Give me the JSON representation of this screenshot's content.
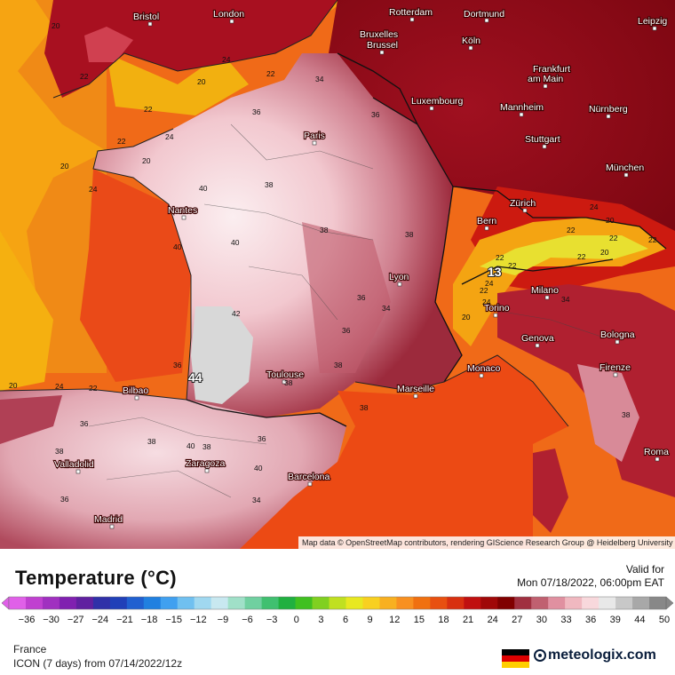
{
  "map": {
    "attribution": "Map data © OpenStreetMap contributors, rendering GIScience Research Group @ Heidelberg University",
    "cities": [
      {
        "name": "Bristol",
        "id": "bristol"
      },
      {
        "name": "London",
        "id": "london"
      },
      {
        "name": "Rotterdam",
        "id": "rotterdam"
      },
      {
        "name": "Dortmund",
        "id": "dortmund"
      },
      {
        "name": "Leipzig",
        "id": "leipzig"
      },
      {
        "name": "Bruxelles",
        "id": "bruxelles-1"
      },
      {
        "name": "Brussel",
        "id": "bruxelles-2"
      },
      {
        "name": "Köln",
        "id": "koln"
      },
      {
        "name": "Frankfurt",
        "id": "frankfurt-1"
      },
      {
        "name": "am Main",
        "id": "frankfurt-2"
      },
      {
        "name": "Luxembourg",
        "id": "luxembourg"
      },
      {
        "name": "Mannheim",
        "id": "mannheim"
      },
      {
        "name": "Nürnberg",
        "id": "nurnberg"
      },
      {
        "name": "Paris",
        "id": "paris"
      },
      {
        "name": "Stuttgart",
        "id": "stuttgart"
      },
      {
        "name": "München",
        "id": "munchen"
      },
      {
        "name": "Nantes",
        "id": "nantes"
      },
      {
        "name": "Zürich",
        "id": "zurich"
      },
      {
        "name": "Bern",
        "id": "bern"
      },
      {
        "name": "Lyon",
        "id": "lyon"
      },
      {
        "name": "Milano",
        "id": "milano"
      },
      {
        "name": "Torino",
        "id": "torino"
      },
      {
        "name": "Genova",
        "id": "genova"
      },
      {
        "name": "Bologna",
        "id": "bologna"
      },
      {
        "name": "Toulouse",
        "id": "toulouse"
      },
      {
        "name": "Monaco",
        "id": "monaco"
      },
      {
        "name": "Marseille",
        "id": "marseille"
      },
      {
        "name": "Firenze",
        "id": "firenze"
      },
      {
        "name": "Bilbao",
        "id": "bilbao"
      },
      {
        "name": "Valladolid",
        "id": "valladolid"
      },
      {
        "name": "Zaragoza",
        "id": "zaragoza"
      },
      {
        "name": "Barcelona",
        "id": "barcelona"
      },
      {
        "name": "Roma",
        "id": "roma"
      },
      {
        "name": "Madrid",
        "id": "madrid"
      }
    ],
    "values": [
      "20",
      "22",
      "24",
      "20",
      "22",
      "24",
      "22",
      "20",
      "24",
      "34",
      "36",
      "22",
      "20",
      "38",
      "36",
      "40",
      "38",
      "40",
      "40",
      "38",
      "42",
      "36",
      "44",
      "38",
      "36",
      "38",
      "38",
      "38",
      "40",
      "38",
      "40",
      "38",
      "36",
      "36",
      "34",
      "20",
      "24",
      "22",
      "24",
      "22",
      "13",
      "22",
      "22",
      "20",
      "22",
      "24",
      "22",
      "20",
      "22",
      "20",
      "24",
      "22",
      "34",
      "36",
      "34",
      "38",
      "36"
    ]
  },
  "legend": {
    "title": "Temperature (°C)",
    "valid_label": "Valid for",
    "valid_date": "Mon 07/18/2022, 06:00pm EAT",
    "ticks": [
      "−36",
      "−30",
      "−27",
      "−24",
      "−21",
      "−18",
      "−15",
      "−12",
      "−9",
      "−6",
      "−3",
      "0",
      "3",
      "6",
      "9",
      "12",
      "15",
      "18",
      "21",
      "24",
      "27",
      "30",
      "33",
      "36",
      "39",
      "44",
      "50"
    ],
    "colors": [
      "#e060e8",
      "#c040d0",
      "#a030c0",
      "#8020b0",
      "#6020a0",
      "#3030a8",
      "#2040b8",
      "#2060d0",
      "#2080e0",
      "#40a0f0",
      "#70c0f0",
      "#a0d8f0",
      "#c8e8f0",
      "#a0e0c8",
      "#70d0a0",
      "#40c070",
      "#20b040",
      "#40c020",
      "#80d020",
      "#c0e020",
      "#e8e820",
      "#f8d020",
      "#f8b020",
      "#f89020",
      "#f07010",
      "#e85010",
      "#d83010",
      "#c01010",
      "#a00808",
      "#800000",
      "#a03040",
      "#c06070",
      "#e090a0",
      "#f0b8c0",
      "#f8d8dc",
      "#e8e8e8",
      "#c8c8c8",
      "#a8a8a8",
      "#888888"
    ]
  },
  "footer": {
    "region": "France",
    "model": "ICON (7 days)  from  07/14/2022/12z",
    "brand": "meteologix.com"
  }
}
